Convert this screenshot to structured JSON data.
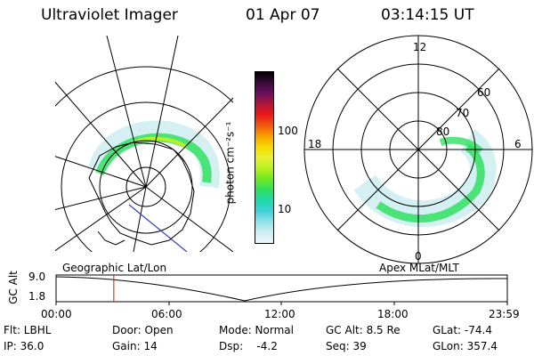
{
  "header": {
    "instrument": "Ultraviolet Imager",
    "date": "01 Apr 07",
    "time": "03:14:15 UT"
  },
  "left_panel": {
    "label": "Geographic Lat/Lon"
  },
  "right_panel": {
    "label": "Apex MLat/MLT",
    "mlt_labels": {
      "top": "12",
      "left": "18",
      "right": "6",
      "bottom": "0"
    },
    "lat_labels": [
      "60",
      "70",
      "80"
    ]
  },
  "colorbar": {
    "unit_label": "photon cm⁻²s⁻¹",
    "ticks": [
      "100",
      "10"
    ],
    "colors": [
      "#000000",
      "#3a0a3a",
      "#6a1060",
      "#b01838",
      "#e81818",
      "#f25a10",
      "#f8a000",
      "#f8d800",
      "#e8f030",
      "#b8f020",
      "#70e820",
      "#30e060",
      "#20d8a8",
      "#40d0d8",
      "#90e0e8",
      "#d0eef2",
      "#eef6f8"
    ]
  },
  "timeline": {
    "ylabel": "GC Alt",
    "y_ticks": [
      "9.0",
      "1.8"
    ],
    "x_ticks": [
      "00:00",
      "06:00",
      "12:00",
      "18:00",
      "23:59"
    ],
    "marker_time_hours": 3.07
  },
  "info": {
    "flt": "Flt: LBHL",
    "ip": "IP: 36.0",
    "door": "Door: Open",
    "gain": "Gain: 14",
    "mode": "Mode: Normal",
    "dsp": "Dsp:    -4.2",
    "gc_alt": "GC Alt: 8.5 Re",
    "seq": "Seq: 39",
    "glat": "GLat: -74.4",
    "glon": "GLon: 357.4"
  }
}
